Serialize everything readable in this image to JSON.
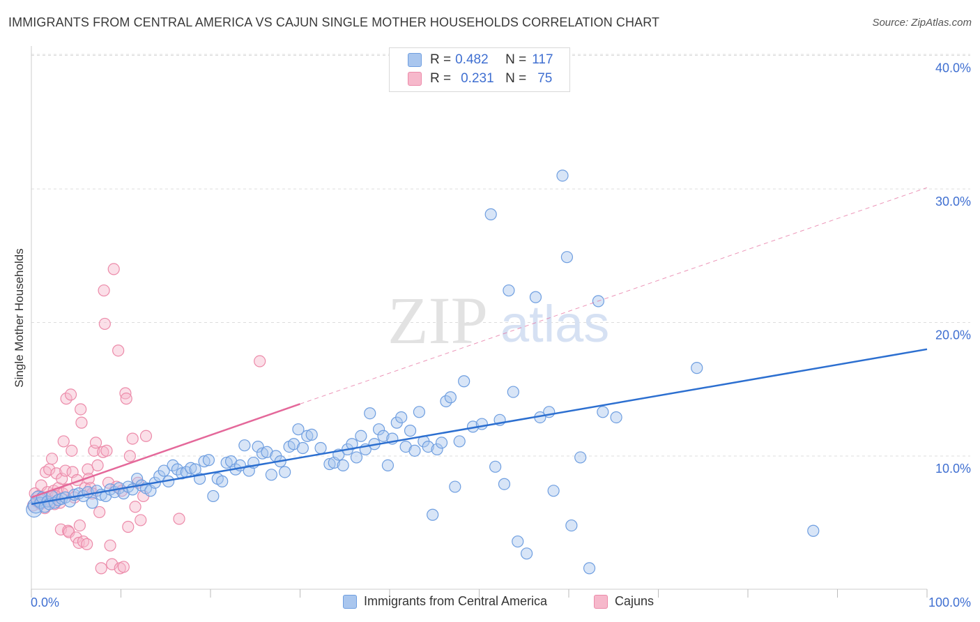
{
  "title": "IMMIGRANTS FROM CENTRAL AMERICA VS CAJUN SINGLE MOTHER HOUSEHOLDS CORRELATION CHART",
  "source": "Source: ZipAtlas.com",
  "watermark": {
    "zip": "ZIP",
    "atlas": "atlas"
  },
  "legend": {
    "rows": [
      {
        "r_label": "R =",
        "r_value": "0.482",
        "n_label": "N =",
        "n_value": "117"
      },
      {
        "r_label": "R =",
        "r_value": "0.231",
        "n_label": "N =",
        "n_value": "75"
      }
    ]
  },
  "bottom_legend": [
    "Immigrants from Central America",
    "Cajuns"
  ],
  "colors": {
    "blue_fill": "#a9c6ee",
    "blue_stroke": "#6e9ee0",
    "blue_line": "#2c6fd0",
    "pink_fill": "#f6b8cb",
    "pink_stroke": "#ec8aa9",
    "pink_line": "#e4689a",
    "tick_text": "#3f6fd1",
    "grid": "#dddddd"
  },
  "chart_data": {
    "type": "scatter",
    "title": "IMMIGRANTS FROM CENTRAL AMERICA VS CAJUN SINGLE MOTHER HOUSEHOLDS CORRELATION CHART",
    "xlabel": "",
    "ylabel": "Single Mother Households",
    "xlim": [
      0,
      100
    ],
    "ylim": [
      0,
      40
    ],
    "x_tick_labels": [
      "0.0%",
      "100.0%"
    ],
    "y_ticks": [
      10,
      20,
      30,
      40
    ],
    "y_tick_labels": [
      "10.0%",
      "20.0%",
      "30.0%",
      "40.0%"
    ],
    "grid": true,
    "series": [
      {
        "name": "Immigrants from Central America",
        "r": 0.482,
        "n": 117,
        "trend": {
          "x": [
            0,
            100
          ],
          "y": [
            6.4,
            18.0
          ],
          "style": "solid"
        },
        "points": [
          [
            0.3,
            6.0
          ],
          [
            0.5,
            6.3
          ],
          [
            0.8,
            6.8
          ],
          [
            1.0,
            6.5
          ],
          [
            1.2,
            6.9
          ],
          [
            1.5,
            6.2
          ],
          [
            1.8,
            6.6
          ],
          [
            2.0,
            6.4
          ],
          [
            2.3,
            7.0
          ],
          [
            2.6,
            6.5
          ],
          [
            3.0,
            6.7
          ],
          [
            3.4,
            6.8
          ],
          [
            3.8,
            6.9
          ],
          [
            4.3,
            6.6
          ],
          [
            4.8,
            7.1
          ],
          [
            5.3,
            7.2
          ],
          [
            5.8,
            7.0
          ],
          [
            6.3,
            7.3
          ],
          [
            6.8,
            6.5
          ],
          [
            7.3,
            7.4
          ],
          [
            7.8,
            7.1
          ],
          [
            8.3,
            7.0
          ],
          [
            8.8,
            7.5
          ],
          [
            9.3,
            7.3
          ],
          [
            9.8,
            7.6
          ],
          [
            10.3,
            7.2
          ],
          [
            10.8,
            7.7
          ],
          [
            11.3,
            7.5
          ],
          [
            11.8,
            8.3
          ],
          [
            12.3,
            7.8
          ],
          [
            12.8,
            7.6
          ],
          [
            13.3,
            7.4
          ],
          [
            13.8,
            8.0
          ],
          [
            14.3,
            8.5
          ],
          [
            14.8,
            8.9
          ],
          [
            15.3,
            8.1
          ],
          [
            15.8,
            9.3
          ],
          [
            16.3,
            9.0
          ],
          [
            16.8,
            8.7
          ],
          [
            17.3,
            8.8
          ],
          [
            17.8,
            9.1
          ],
          [
            18.3,
            9.0
          ],
          [
            18.8,
            8.3
          ],
          [
            19.3,
            9.6
          ],
          [
            19.8,
            9.7
          ],
          [
            20.3,
            7.0
          ],
          [
            20.8,
            8.3
          ],
          [
            21.3,
            8.1
          ],
          [
            21.8,
            9.5
          ],
          [
            22.3,
            9.6
          ],
          [
            22.8,
            9.0
          ],
          [
            23.3,
            9.3
          ],
          [
            23.8,
            10.8
          ],
          [
            24.3,
            8.9
          ],
          [
            24.8,
            9.5
          ],
          [
            25.3,
            10.7
          ],
          [
            25.8,
            10.2
          ],
          [
            26.3,
            10.3
          ],
          [
            26.8,
            8.6
          ],
          [
            27.3,
            10.0
          ],
          [
            27.8,
            9.6
          ],
          [
            28.3,
            8.8
          ],
          [
            28.8,
            10.7
          ],
          [
            29.3,
            10.9
          ],
          [
            29.8,
            12.0
          ],
          [
            30.3,
            10.6
          ],
          [
            30.8,
            11.5
          ],
          [
            31.3,
            11.6
          ],
          [
            32.3,
            10.6
          ],
          [
            33.3,
            9.4
          ],
          [
            33.8,
            9.5
          ],
          [
            34.3,
            10.1
          ],
          [
            34.8,
            9.3
          ],
          [
            35.3,
            10.5
          ],
          [
            35.8,
            10.9
          ],
          [
            36.3,
            9.9
          ],
          [
            36.8,
            11.5
          ],
          [
            37.3,
            10.5
          ],
          [
            37.8,
            13.2
          ],
          [
            38.3,
            10.9
          ],
          [
            38.8,
            12.0
          ],
          [
            39.3,
            11.5
          ],
          [
            39.8,
            9.3
          ],
          [
            40.3,
            11.3
          ],
          [
            40.8,
            12.5
          ],
          [
            41.3,
            12.9
          ],
          [
            41.8,
            10.7
          ],
          [
            42.3,
            11.9
          ],
          [
            42.8,
            10.4
          ],
          [
            43.3,
            13.3
          ],
          [
            43.8,
            11.1
          ],
          [
            44.3,
            10.7
          ],
          [
            44.8,
            5.6
          ],
          [
            45.3,
            10.5
          ],
          [
            45.8,
            11.0
          ],
          [
            46.3,
            14.1
          ],
          [
            46.8,
            14.4
          ],
          [
            47.3,
            7.7
          ],
          [
            47.8,
            11.1
          ],
          [
            48.3,
            15.6
          ],
          [
            49.3,
            12.2
          ],
          [
            50.3,
            12.4
          ],
          [
            51.3,
            28.1
          ],
          [
            51.8,
            9.2
          ],
          [
            52.3,
            12.7
          ],
          [
            52.8,
            7.9
          ],
          [
            53.3,
            22.4
          ],
          [
            53.8,
            14.8
          ],
          [
            54.3,
            3.6
          ],
          [
            55.3,
            2.7
          ],
          [
            56.3,
            21.9
          ],
          [
            56.8,
            12.9
          ],
          [
            57.8,
            13.3
          ],
          [
            58.3,
            7.4
          ],
          [
            59.3,
            31.0
          ],
          [
            59.8,
            24.9
          ],
          [
            60.3,
            4.8
          ],
          [
            61.3,
            9.9
          ],
          [
            62.3,
            1.6
          ],
          [
            63.3,
            21.6
          ],
          [
            63.8,
            13.3
          ],
          [
            65.3,
            12.9
          ],
          [
            74.3,
            16.6
          ],
          [
            87.3,
            4.4
          ]
        ]
      },
      {
        "name": "Cajuns",
        "r": 0.231,
        "n": 75,
        "trend": {
          "x": [
            0,
            30
          ],
          "y": [
            6.9,
            13.9
          ],
          "style": "solid",
          "extension": {
            "x": [
              30,
              100
            ],
            "y": [
              13.9,
              30.1
            ],
            "style": "dashed"
          }
        },
        "points": [
          [
            0.2,
            6.3
          ],
          [
            0.4,
            7.2
          ],
          [
            0.6,
            6.6
          ],
          [
            0.8,
            7.0
          ],
          [
            1.0,
            6.4
          ],
          [
            1.1,
            7.8
          ],
          [
            1.3,
            6.9
          ],
          [
            1.5,
            6.1
          ],
          [
            1.6,
            8.8
          ],
          [
            1.8,
            7.3
          ],
          [
            2.0,
            9.0
          ],
          [
            2.2,
            6.6
          ],
          [
            2.3,
            9.8
          ],
          [
            2.5,
            7.4
          ],
          [
            2.6,
            6.4
          ],
          [
            2.8,
            8.7
          ],
          [
            3.0,
            7.6
          ],
          [
            3.2,
            6.5
          ],
          [
            3.3,
            4.5
          ],
          [
            3.4,
            8.3
          ],
          [
            3.5,
            7.2
          ],
          [
            3.6,
            11.1
          ],
          [
            3.8,
            8.9
          ],
          [
            3.9,
            14.3
          ],
          [
            4.0,
            7.5
          ],
          [
            4.1,
            4.4
          ],
          [
            4.2,
            4.3
          ],
          [
            4.4,
            14.6
          ],
          [
            4.5,
            10.4
          ],
          [
            4.6,
            8.8
          ],
          [
            4.8,
            6.9
          ],
          [
            5.0,
            3.9
          ],
          [
            5.1,
            8.2
          ],
          [
            5.3,
            3.5
          ],
          [
            5.4,
            4.8
          ],
          [
            5.5,
            13.5
          ],
          [
            5.6,
            12.5
          ],
          [
            5.8,
            3.6
          ],
          [
            6.0,
            7.6
          ],
          [
            6.2,
            3.4
          ],
          [
            6.3,
            9.0
          ],
          [
            6.4,
            8.3
          ],
          [
            6.6,
            7.6
          ],
          [
            6.8,
            7.2
          ],
          [
            7.0,
            10.4
          ],
          [
            7.2,
            11.0
          ],
          [
            7.4,
            9.3
          ],
          [
            7.6,
            5.8
          ],
          [
            7.8,
            1.6
          ],
          [
            8.0,
            10.3
          ],
          [
            8.1,
            22.4
          ],
          [
            8.2,
            19.9
          ],
          [
            8.4,
            10.4
          ],
          [
            8.6,
            8.0
          ],
          [
            8.8,
            3.3
          ],
          [
            9.0,
            1.9
          ],
          [
            9.2,
            24.0
          ],
          [
            9.5,
            7.7
          ],
          [
            9.7,
            17.9
          ],
          [
            9.9,
            1.6
          ],
          [
            10.1,
            7.4
          ],
          [
            10.3,
            1.7
          ],
          [
            10.5,
            14.7
          ],
          [
            10.6,
            14.3
          ],
          [
            10.8,
            4.7
          ],
          [
            11.0,
            10.0
          ],
          [
            11.3,
            11.3
          ],
          [
            11.6,
            6.2
          ],
          [
            11.9,
            8.0
          ],
          [
            12.2,
            5.2
          ],
          [
            12.5,
            7.0
          ],
          [
            12.8,
            11.5
          ],
          [
            16.5,
            5.3
          ],
          [
            25.5,
            17.1
          ],
          [
            2.7,
            7.0
          ]
        ]
      }
    ]
  }
}
